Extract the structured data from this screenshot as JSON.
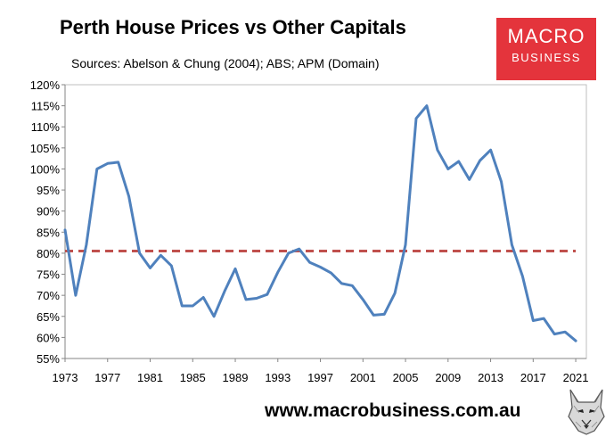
{
  "title": "Perth House Prices vs Other Capitals",
  "subtitle": "Sources: Abelson & Chung (2004); ABS; APM (Domain)",
  "logo": {
    "line1": "MACRO",
    "line2": "BUSINESS"
  },
  "footer": {
    "url": "www.macrobusiness.com.au"
  },
  "colors": {
    "series": "#4f81bd",
    "reference": "#c0504d",
    "logo_bg": "#e4343c",
    "plot_bg": "#ffffff"
  },
  "chart_data": {
    "type": "line",
    "title": "Perth House Prices vs Other Capitals",
    "ylim": [
      0.55,
      1.2
    ],
    "xlim": [
      1973,
      2022
    ],
    "grid": false,
    "y_ticks": [
      "55%",
      "60%",
      "65%",
      "70%",
      "75%",
      "80%",
      "85%",
      "90%",
      "95%",
      "100%",
      "105%",
      "110%",
      "115%",
      "120%"
    ],
    "x_ticks": [
      "1973",
      "1977",
      "1981",
      "1985",
      "1989",
      "1993",
      "1997",
      "2001",
      "2005",
      "2009",
      "2013",
      "2017",
      "2021"
    ],
    "x": [
      1973,
      1974,
      1975,
      1976,
      1977,
      1978,
      1979,
      1980,
      1981,
      1982,
      1983,
      1984,
      1985,
      1986,
      1987,
      1988,
      1989,
      1990,
      1991,
      1992,
      1993,
      1994,
      1995,
      1996,
      1997,
      1998,
      1999,
      2000,
      2001,
      2002,
      2003,
      2004,
      2005,
      2006,
      2007,
      2008,
      2009,
      2010,
      2011,
      2012,
      2013,
      2014,
      2015,
      2016,
      2017,
      2018,
      2019,
      2020,
      2021
    ],
    "series": [
      {
        "values": [
          0.855,
          0.7,
          0.82,
          1.0,
          1.013,
          1.016,
          0.935,
          0.8,
          0.765,
          0.795,
          0.77,
          0.675,
          0.675,
          0.695,
          0.65,
          0.71,
          0.763,
          0.69,
          0.693,
          0.702,
          0.755,
          0.8,
          0.81,
          0.778,
          0.767,
          0.753,
          0.728,
          0.723,
          0.69,
          0.653,
          0.655,
          0.705,
          0.82,
          1.12,
          1.15,
          1.045,
          1.0,
          1.018,
          0.975,
          1.02,
          1.045,
          0.97,
          0.82,
          0.745,
          0.64,
          0.645,
          0.608,
          0.613,
          0.592
        ]
      }
    ],
    "reference_line": {
      "value": 0.805,
      "style": "dashed"
    }
  }
}
